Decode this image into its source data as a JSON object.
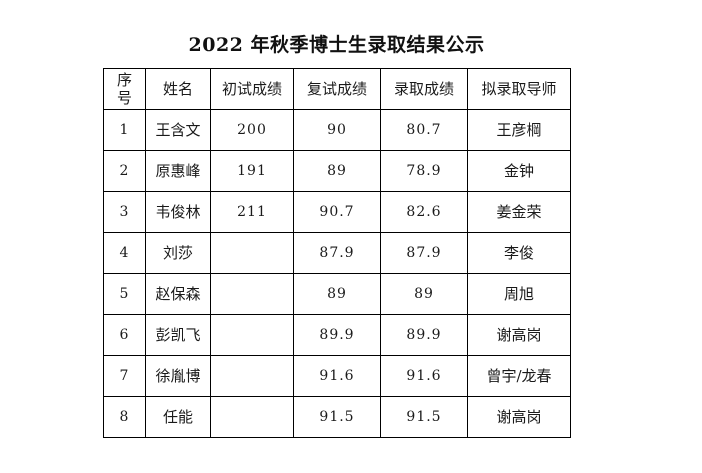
{
  "title": "2022 年秋季博士生录取结果公示",
  "table": {
    "headers": [
      "序\n号",
      "姓名",
      "初试成绩",
      "复试成绩",
      "录取成绩",
      "拟录取导师"
    ],
    "rows": [
      [
        "1",
        "王含文",
        "200",
        "90",
        "80.7",
        "王彦棡"
      ],
      [
        "2",
        "原惠峰",
        "191",
        "89",
        "78.9",
        "金钟"
      ],
      [
        "3",
        "韦俊林",
        "211",
        "90.7",
        "82.6",
        "姜金荣"
      ],
      [
        "4",
        "刘莎",
        "",
        "87.9",
        "87.9",
        "李俊"
      ],
      [
        "5",
        "赵保森",
        "",
        "89",
        "89",
        "周旭"
      ],
      [
        "6",
        "彭凯飞",
        "",
        "89.9",
        "89.9",
        "谢高岗"
      ],
      [
        "7",
        "徐胤博",
        "",
        "91.6",
        "91.6",
        "曾宇/龙春"
      ],
      [
        "8",
        "任能",
        "",
        "91.5",
        "91.5",
        "谢高岗"
      ]
    ]
  },
  "colors": {
    "background": "#ffffff",
    "border": "#000000",
    "text": "#1a1a1a"
  }
}
